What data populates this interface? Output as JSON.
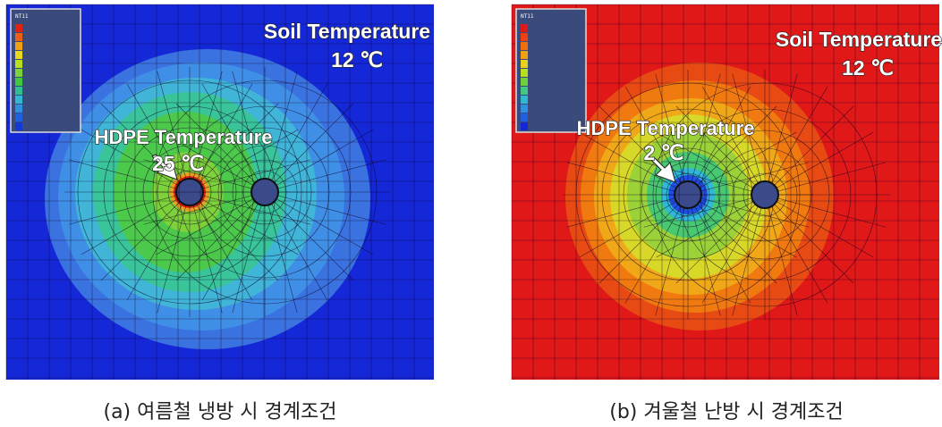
{
  "panels": [
    {
      "legend_title": "NT11",
      "soil_label": "Soil Temperature",
      "soil_value": "12 ℃",
      "hdpe_label": "HDPE Temperature",
      "hdpe_value": "25 ℃",
      "caption": "(a) 여름철 냉방 시 경계조건"
    },
    {
      "legend_title": "NT11",
      "soil_label": "Soil Temperature",
      "soil_value": "12 ℃",
      "hdpe_label": "HDPE Temperature",
      "hdpe_value": "2 ℃",
      "caption": "(b) 겨울철 난방 시 경계조건"
    }
  ]
}
